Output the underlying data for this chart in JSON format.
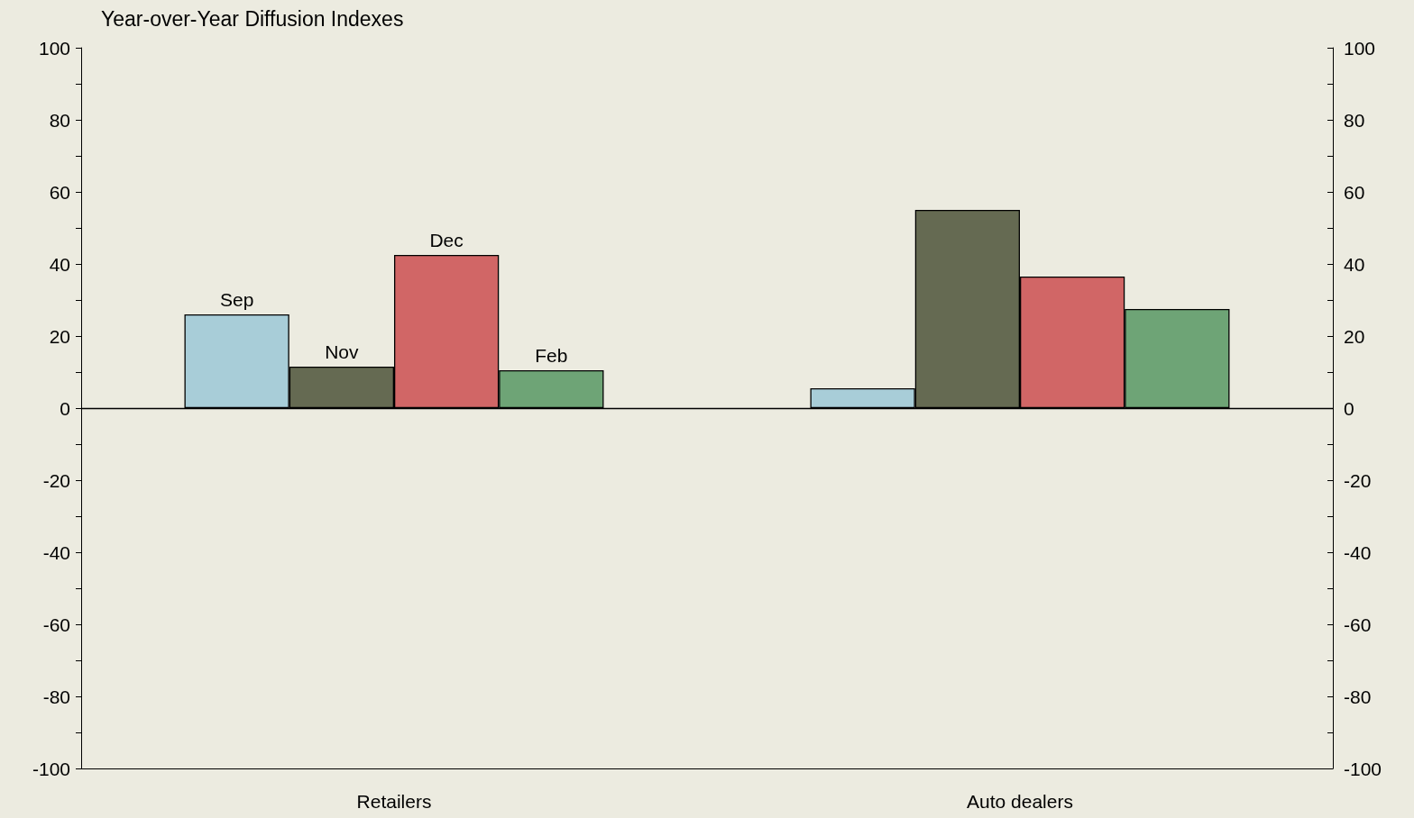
{
  "chart_data": {
    "type": "bar",
    "title": "Year-over-Year Diffusion Indexes",
    "categories": [
      "Retailers",
      "Auto dealers"
    ],
    "series": [
      {
        "name": "Sep",
        "color": "#a8cdd8",
        "values": [
          26,
          5.5
        ]
      },
      {
        "name": "Nov",
        "color": "#656a52",
        "values": [
          11.5,
          55
        ]
      },
      {
        "name": "Dec",
        "color": "#d16666",
        "values": [
          42.5,
          36.5
        ]
      },
      {
        "name": "Feb",
        "color": "#6ea476",
        "values": [
          10.5,
          27.5
        ]
      }
    ],
    "ylim": [
      -100,
      100
    ],
    "yticks": [
      -100,
      {
        "value": -90,
        "label": null
      },
      -80,
      {
        "value": -70,
        "label": null
      },
      -60,
      {
        "value": -50,
        "label": null
      },
      -40,
      {
        "value": -30,
        "label": null
      },
      -20,
      {
        "value": -10,
        "label": null
      },
      0,
      {
        "value": 10,
        "label": null
      },
      20,
      {
        "value": 30,
        "label": null
      },
      40,
      {
        "value": 50,
        "label": null
      },
      60,
      {
        "value": 70,
        "label": null
      },
      80,
      {
        "value": 90,
        "label": null
      },
      100
    ],
    "y2lim": [
      -100,
      100
    ],
    "y2ticks": [
      -100,
      {
        "value": -90,
        "label": null
      },
      -80,
      {
        "value": -70,
        "label": null
      },
      -60,
      {
        "value": -50,
        "label": null
      },
      -40,
      {
        "value": -30,
        "label": null
      },
      -20,
      {
        "value": -10,
        "label": null
      },
      0,
      {
        "value": 10,
        "label": null
      },
      20,
      {
        "value": 30,
        "label": null
      },
      40,
      {
        "value": 50,
        "label": null
      },
      60,
      {
        "value": 70,
        "label": null
      },
      80,
      {
        "value": 90,
        "label": null
      },
      100
    ],
    "legend": false
  }
}
